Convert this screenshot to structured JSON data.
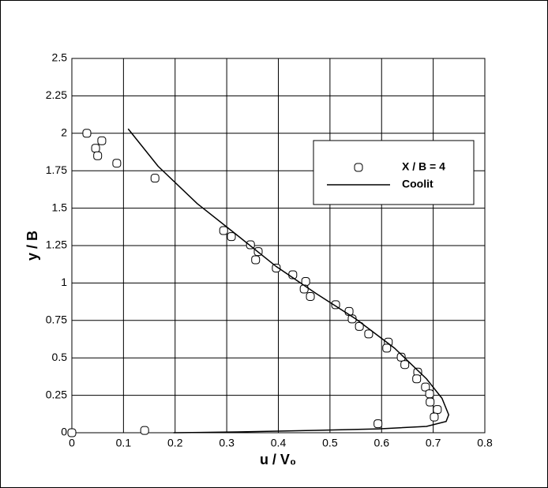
{
  "chart_data": {
    "type": "scatter-line",
    "xlabel": "u / V₀",
    "ylabel": "y / B",
    "xlim": [
      0,
      0.8
    ],
    "ylim": [
      0,
      2.5
    ],
    "xticks": [
      0,
      0.1,
      0.2,
      0.3,
      0.4,
      0.5,
      0.6,
      0.7,
      0.8
    ],
    "yticks": [
      0,
      0.25,
      0.5,
      0.75,
      1,
      1.25,
      1.5,
      1.75,
      2,
      2.25,
      2.5
    ],
    "grid": true,
    "legend": "upper right",
    "series": [
      {
        "name": "X / B = 4",
        "kind": "scatter",
        "color": "#000000",
        "x": [
          0,
          0.029,
          0.046,
          0.058,
          0.05,
          0.087,
          0.161,
          0.294,
          0.309,
          0.346,
          0.361,
          0.356,
          0.396,
          0.428,
          0.453,
          0.45,
          0.462,
          0.511,
          0.537,
          0.543,
          0.557,
          0.575,
          0.613,
          0.61,
          0.638,
          0.645,
          0.67,
          0.668,
          0.685,
          0.693,
          0.694,
          0.708,
          0.702,
          0.593,
          0.141
        ],
        "values": [
          0,
          2.0,
          1.9,
          1.95,
          1.85,
          1.8,
          1.7,
          1.35,
          1.31,
          1.255,
          1.21,
          1.155,
          1.1,
          1.055,
          1.01,
          0.96,
          0.91,
          0.855,
          0.81,
          0.76,
          0.71,
          0.66,
          0.605,
          0.565,
          0.505,
          0.455,
          0.405,
          0.36,
          0.305,
          0.26,
          0.205,
          0.155,
          0.105,
          0.06,
          0.015
        ]
      },
      {
        "name": "Coolit",
        "kind": "line",
        "color": "#000000",
        "x": [
          0.109,
          0.167,
          0.243,
          0.32,
          0.396,
          0.473,
          0.55,
          0.625,
          0.687,
          0.717,
          0.73,
          0.725,
          0.687,
          0.595,
          0.473,
          0.32,
          0.197
        ],
        "values": [
          2.03,
          1.78,
          1.53,
          1.32,
          1.11,
          0.93,
          0.76,
          0.565,
          0.36,
          0.23,
          0.12,
          0.075,
          0.042,
          0.026,
          0.016,
          0.005,
          0
        ]
      }
    ]
  }
}
